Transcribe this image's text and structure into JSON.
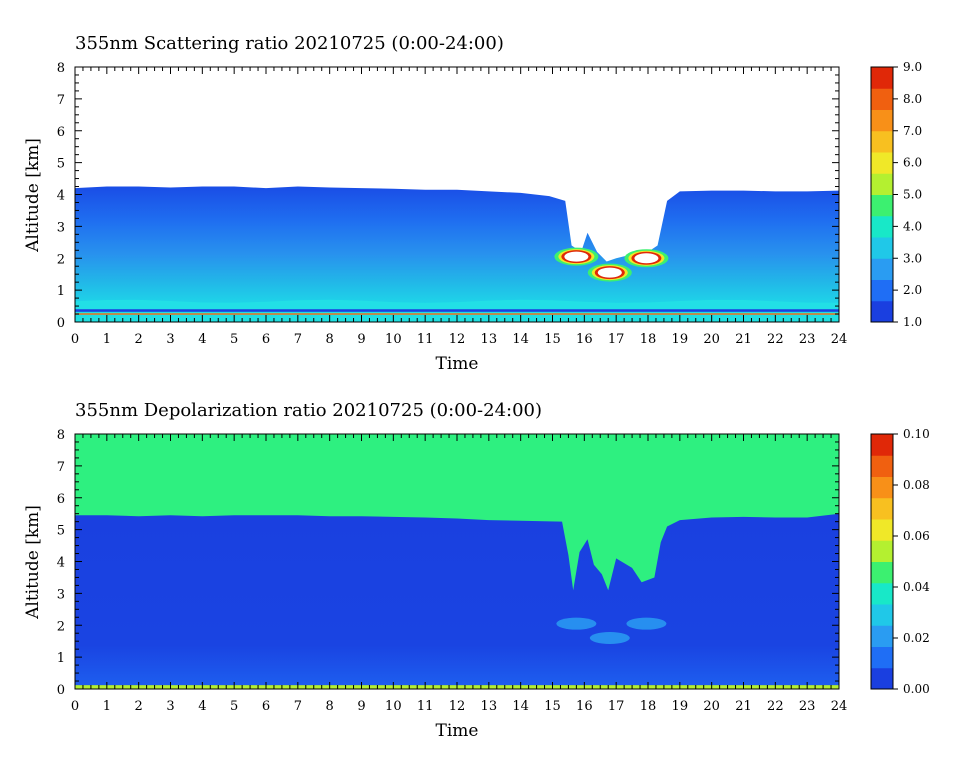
{
  "chart_data": [
    {
      "type": "heatmap",
      "title": "355nm Scattering ratio  20210725 (0:00-24:00)",
      "xlabel": "Time",
      "ylabel": "Altitude [km]",
      "x_ticks": [
        "0",
        "1",
        "2",
        "3",
        "4",
        "5",
        "6",
        "7",
        "8",
        "9",
        "10",
        "11",
        "12",
        "13",
        "14",
        "15",
        "16",
        "17",
        "18",
        "19",
        "20",
        "21",
        "22",
        "23",
        "24"
      ],
      "y_ticks": [
        "0",
        "1",
        "2",
        "3",
        "4",
        "5",
        "6",
        "7",
        "8"
      ],
      "xlim": [
        0,
        24
      ],
      "ylim": [
        0,
        8
      ],
      "colorbar": {
        "range": [
          1.0,
          9.0
        ],
        "tick_labels": [
          "1.0",
          "2.0",
          "3.0",
          "4.0",
          "5.0",
          "6.0",
          "7.0",
          "8.0",
          "9.0"
        ],
        "colors": [
          "#1a3fe0",
          "#1f6ef5",
          "#2a9cf2",
          "#20c8e8",
          "#18e8c8",
          "#3cf070",
          "#b4f030",
          "#f0e828",
          "#f8c020",
          "#f89018",
          "#f06010",
          "#e02808"
        ]
      },
      "layer_top_km": [
        [
          0,
          4.2
        ],
        [
          1,
          4.25
        ],
        [
          2,
          4.25
        ],
        [
          3,
          4.22
        ],
        [
          4,
          4.25
        ],
        [
          5,
          4.25
        ],
        [
          6,
          4.2
        ],
        [
          7,
          4.25
        ],
        [
          8,
          4.22
        ],
        [
          9,
          4.2
        ],
        [
          10,
          4.18
        ],
        [
          11,
          4.15
        ],
        [
          12,
          4.15
        ],
        [
          13,
          4.1
        ],
        [
          14,
          4.05
        ],
        [
          14.9,
          3.95
        ],
        [
          15.4,
          3.8
        ],
        [
          15.6,
          2.4
        ],
        [
          15.9,
          2.2
        ],
        [
          16.1,
          2.8
        ],
        [
          16.4,
          2.2
        ],
        [
          16.7,
          1.9
        ],
        [
          17.0,
          2.0
        ],
        [
          17.4,
          2.1
        ],
        [
          17.7,
          2.1
        ],
        [
          18.0,
          2.2
        ],
        [
          18.3,
          2.4
        ],
        [
          18.6,
          3.8
        ],
        [
          19,
          4.1
        ],
        [
          20,
          4.12
        ],
        [
          21,
          4.12
        ],
        [
          22,
          4.1
        ],
        [
          23,
          4.1
        ],
        [
          24,
          4.12
        ]
      ],
      "cloud_features": [
        {
          "time": 15.75,
          "altitude_km": 2.05,
          "max_value": 9.0
        },
        {
          "time": 16.8,
          "altitude_km": 1.55,
          "max_value": 9.0
        },
        {
          "time": 17.95,
          "altitude_km": 2.0,
          "max_value": 9.0
        }
      ],
      "surface_line_km": 0.25
    },
    {
      "type": "heatmap",
      "title": "355nm Depolarization ratio  20210725 (0:00-24:00)",
      "xlabel": "Time",
      "ylabel": "Altitude [km]",
      "x_ticks": [
        "0",
        "1",
        "2",
        "3",
        "4",
        "5",
        "6",
        "7",
        "8",
        "9",
        "10",
        "11",
        "12",
        "13",
        "14",
        "15",
        "16",
        "17",
        "18",
        "19",
        "20",
        "21",
        "22",
        "23",
        "24"
      ],
      "y_ticks": [
        "0",
        "1",
        "2",
        "3",
        "4",
        "5",
        "6",
        "7",
        "8"
      ],
      "xlim": [
        0,
        24
      ],
      "ylim": [
        0,
        8
      ],
      "colorbar": {
        "range": [
          0.0,
          0.1
        ],
        "tick_labels": [
          "0.00",
          "0.02",
          "0.04",
          "0.06",
          "0.08",
          "0.10"
        ],
        "colors": [
          "#1a3fe0",
          "#1f6ef5",
          "#2a9cf2",
          "#20c8e8",
          "#18e8c8",
          "#3cf070",
          "#b4f030",
          "#f0e828",
          "#f8c020",
          "#f89018",
          "#f06010",
          "#e02808"
        ]
      },
      "upper_region_value": 0.04,
      "lower_region_value": 0.0,
      "boundary_km": [
        [
          0,
          5.45
        ],
        [
          1,
          5.45
        ],
        [
          2,
          5.42
        ],
        [
          3,
          5.45
        ],
        [
          4,
          5.42
        ],
        [
          5,
          5.45
        ],
        [
          6,
          5.45
        ],
        [
          7,
          5.45
        ],
        [
          8,
          5.42
        ],
        [
          9,
          5.42
        ],
        [
          10,
          5.4
        ],
        [
          11,
          5.38
        ],
        [
          12,
          5.35
        ],
        [
          13,
          5.3
        ],
        [
          14,
          5.28
        ],
        [
          15.3,
          5.25
        ],
        [
          15.5,
          4.2
        ],
        [
          15.65,
          3.1
        ],
        [
          15.85,
          4.3
        ],
        [
          16.1,
          4.7
        ],
        [
          16.3,
          3.9
        ],
        [
          16.55,
          3.6
        ],
        [
          16.75,
          3.1
        ],
        [
          17.0,
          4.1
        ],
        [
          17.5,
          3.8
        ],
        [
          17.8,
          3.35
        ],
        [
          18.2,
          3.5
        ],
        [
          18.4,
          4.6
        ],
        [
          18.6,
          5.1
        ],
        [
          19,
          5.3
        ],
        [
          20,
          5.38
        ],
        [
          21,
          5.4
        ],
        [
          22,
          5.38
        ],
        [
          23,
          5.38
        ],
        [
          24,
          5.5
        ]
      ],
      "surface_line_km": 0.05
    }
  ]
}
